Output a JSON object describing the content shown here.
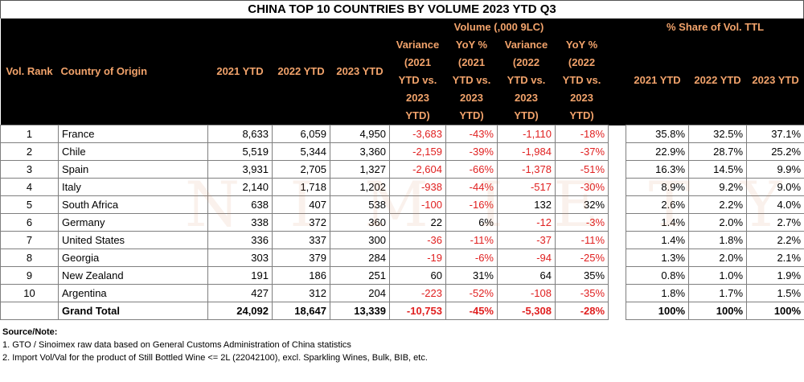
{
  "title": "CHINA TOP 10 COUNTRIES BY VOLUME 2023 YTD Q3",
  "header": {
    "volume_group": "Volume (,000 9LC)",
    "share_group": "% Share of Vol.  TTL",
    "rank": "Vol. Rank",
    "country": "Country of Origin",
    "y2021": "2021 YTD",
    "y2022": "2022 YTD",
    "y2023": "2023 YTD",
    "var21_lines": [
      "Variance",
      "(2021",
      "YTD vs.",
      "2023",
      "YTD)"
    ],
    "yoy21_lines": [
      "YoY %",
      "(2021",
      "YTD vs.",
      "2023",
      "YTD)"
    ],
    "var22_lines": [
      "Variance",
      "(2022",
      "YTD vs.",
      "2023",
      "YTD)"
    ],
    "yoy22_lines": [
      "YoY %",
      "(2022",
      "YTD vs.",
      "2023",
      "YTD)"
    ],
    "s2021": "2021 YTD",
    "s2022": "2022 YTD",
    "s2023": "2023 YTD"
  },
  "rows": [
    {
      "rank": "1",
      "country": "France",
      "v2021": "8,633",
      "v2022": "6,059",
      "v2023": "4,950",
      "var21": "-3,683",
      "yoy21": "-43%",
      "var22": "-1,110",
      "yoy22": "-18%",
      "s2021": "35.8%",
      "s2022": "32.5%",
      "s2023": "37.1%"
    },
    {
      "rank": "2",
      "country": "Chile",
      "v2021": "5,519",
      "v2022": "5,344",
      "v2023": "3,360",
      "var21": "-2,159",
      "yoy21": "-39%",
      "var22": "-1,984",
      "yoy22": "-37%",
      "s2021": "22.9%",
      "s2022": "28.7%",
      "s2023": "25.2%"
    },
    {
      "rank": "3",
      "country": "Spain",
      "v2021": "3,931",
      "v2022": "2,705",
      "v2023": "1,327",
      "var21": "-2,604",
      "yoy21": "-66%",
      "var22": "-1,378",
      "yoy22": "-51%",
      "s2021": "16.3%",
      "s2022": "14.5%",
      "s2023": "9.9%"
    },
    {
      "rank": "4",
      "country": "Italy",
      "v2021": "2,140",
      "v2022": "1,718",
      "v2023": "1,202",
      "var21": "-938",
      "yoy21": "-44%",
      "var22": "-517",
      "yoy22": "-30%",
      "s2021": "8.9%",
      "s2022": "9.2%",
      "s2023": "9.0%"
    },
    {
      "rank": "5",
      "country": "South Africa",
      "v2021": "638",
      "v2022": "407",
      "v2023": "538",
      "var21": "-100",
      "yoy21": "-16%",
      "var22": "132",
      "yoy22": "32%",
      "s2021": "2.6%",
      "s2022": "2.2%",
      "s2023": "4.0%"
    },
    {
      "rank": "6",
      "country": "Germany",
      "v2021": "338",
      "v2022": "372",
      "v2023": "360",
      "var21": "22",
      "yoy21": "6%",
      "var22": "-12",
      "yoy22": "-3%",
      "s2021": "1.4%",
      "s2022": "2.0%",
      "s2023": "2.7%"
    },
    {
      "rank": "7",
      "country": "United States",
      "v2021": "336",
      "v2022": "337",
      "v2023": "300",
      "var21": "-36",
      "yoy21": "-11%",
      "var22": "-37",
      "yoy22": "-11%",
      "s2021": "1.4%",
      "s2022": "1.8%",
      "s2023": "2.2%"
    },
    {
      "rank": "8",
      "country": "Georgia",
      "v2021": "303",
      "v2022": "379",
      "v2023": "284",
      "var21": "-19",
      "yoy21": "-6%",
      "var22": "-94",
      "yoy22": "-25%",
      "s2021": "1.3%",
      "s2022": "2.0%",
      "s2023": "2.1%"
    },
    {
      "rank": "9",
      "country": "New Zealand",
      "v2021": "191",
      "v2022": "186",
      "v2023": "251",
      "var21": "60",
      "yoy21": "31%",
      "var22": "64",
      "yoy22": "35%",
      "s2021": "0.8%",
      "s2022": "1.0%",
      "s2023": "1.9%"
    },
    {
      "rank": "10",
      "country": "Argentina",
      "v2021": "427",
      "v2022": "312",
      "v2023": "204",
      "var21": "-223",
      "yoy21": "-52%",
      "var22": "-108",
      "yoy22": "-35%",
      "s2021": "1.8%",
      "s2022": "1.7%",
      "s2023": "1.5%"
    }
  ],
  "total": {
    "label": "Grand Total",
    "v2021": "24,092",
    "v2022": "18,647",
    "v2023": "13,339",
    "var21": "-10,753",
    "yoy21": "-45%",
    "var22": "-5,308",
    "yoy22": "-28%",
    "s2021": "100%",
    "s2022": "100%",
    "s2023": "100%"
  },
  "watermark": "NIMIETY",
  "notes": {
    "heading": "Source/Note:",
    "line1": "1. GTO / Sinoimex raw data based on General Customs Administration of China statistics",
    "line2": "2. Import Vol/Val for the product of Still Bottled Wine <= 2L (22042100), excl. Sparkling Wines, Bulk, BIB, etc."
  },
  "colors": {
    "header_bg": "#000000",
    "header_text": "#f2a36b",
    "negative": "#e02020"
  }
}
